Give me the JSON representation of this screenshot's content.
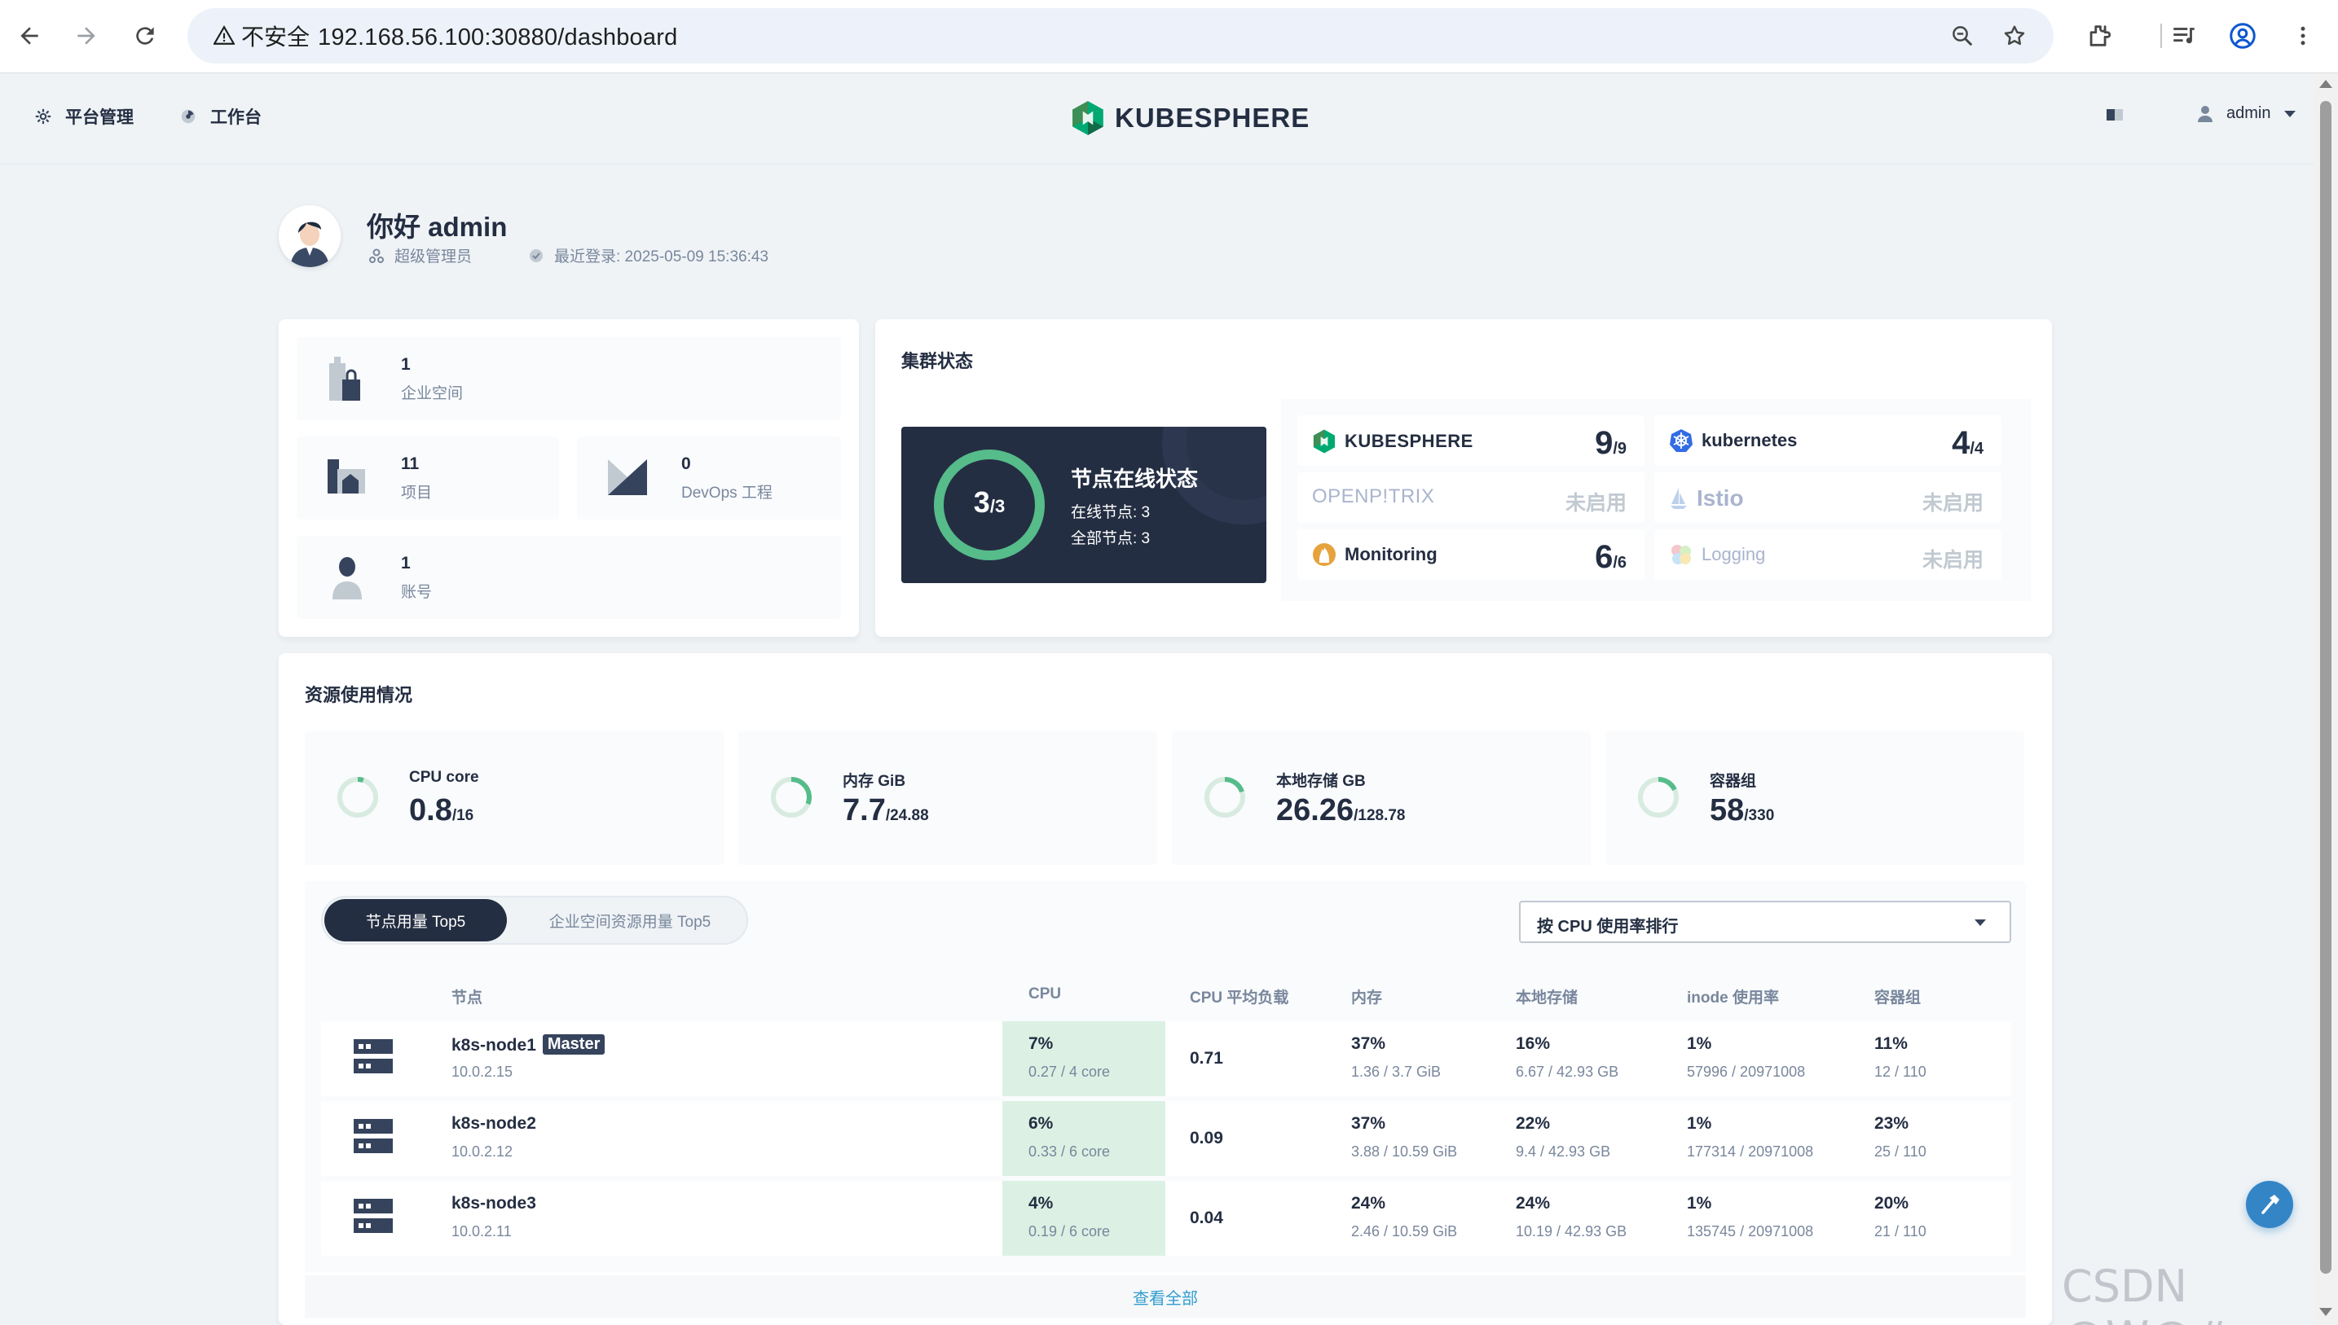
{
  "browser": {
    "security_label": "不安全",
    "url": "192.168.56.100:30880/dashboard"
  },
  "header": {
    "platform_label": "平台管理",
    "workbench_label": "工作台",
    "logo_text": "KUBESPHERE",
    "user_name": "admin"
  },
  "welcome": {
    "greeting": "你好 admin",
    "role": "超级管理员",
    "last_login": "最近登录: 2025-05-09 15:36:43"
  },
  "overview": {
    "workspaces": {
      "value": "1",
      "label": "企业空间"
    },
    "projects": {
      "value": "11",
      "label": "项目"
    },
    "devops": {
      "value": "0",
      "label": "DevOps 工程"
    },
    "accounts": {
      "value": "1",
      "label": "账号"
    }
  },
  "cluster": {
    "title": "集群状态",
    "node_status": {
      "title": "节点在线状态",
      "online_num": "3",
      "total_suffix": "/3",
      "online_line": "在线节点: 3",
      "all_line": "全部节点: 3",
      "online_fraction": 1.0
    },
    "components": [
      {
        "name": "KUBESPHERE",
        "value": "9",
        "total": "/9",
        "enabled": true,
        "icon": "kubesphere-logo-icon"
      },
      {
        "name": "kubernetes",
        "value": "4",
        "total": "/4",
        "enabled": true,
        "icon": "kubernetes-icon"
      },
      {
        "name": "OPENP!TRIX",
        "status": "未启用",
        "enabled": false,
        "icon": "openpitrix-icon"
      },
      {
        "name": "Istio",
        "status": "未启用",
        "enabled": false,
        "icon": "istio-icon"
      },
      {
        "name": "Monitoring",
        "value": "6",
        "total": "/6",
        "enabled": true,
        "icon": "monitoring-icon"
      },
      {
        "name": "Logging",
        "status": "未启用",
        "enabled": false,
        "icon": "logging-icon"
      }
    ]
  },
  "resources": {
    "title": "资源使用情况",
    "items": [
      {
        "label": "CPU core",
        "value": "0.8",
        "total": "/16",
        "fraction": 0.05
      },
      {
        "label": "内存 GiB",
        "value": "7.7",
        "total": "/24.88",
        "fraction": 0.31
      },
      {
        "label": "本地存储 GB",
        "value": "26.26",
        "total": "/128.78",
        "fraction": 0.2
      },
      {
        "label": "容器组",
        "value": "58",
        "total": "/330",
        "fraction": 0.18
      }
    ]
  },
  "top5": {
    "tab_nodes": "节点用量 Top5",
    "tab_workspaces": "企业空间资源用量 Top5",
    "sort_select": "按 CPU 使用率排行",
    "columns": [
      "节点",
      "CPU",
      "CPU 平均负载",
      "内存",
      "本地存储",
      "inode 使用率",
      "容器组"
    ],
    "rows": [
      {
        "name": "k8s-node1",
        "tag": "Master",
        "ip": "10.0.2.15",
        "cpu": "7%",
        "cpu_sub": "0.27 / 4 core",
        "load": "0.71",
        "mem": "37%",
        "mem_sub": "1.36 / 3.7 GiB",
        "disk": "16%",
        "disk_sub": "6.67 / 42.93 GB",
        "inode": "1%",
        "inode_sub": "57996 / 20971008",
        "pods": "11%",
        "pods_sub": "12 / 110"
      },
      {
        "name": "k8s-node2",
        "tag": "",
        "ip": "10.0.2.12",
        "cpu": "6%",
        "cpu_sub": "0.33 / 6 core",
        "load": "0.09",
        "mem": "37%",
        "mem_sub": "3.88 / 10.59 GiB",
        "disk": "22%",
        "disk_sub": "9.4 / 42.93 GB",
        "inode": "1%",
        "inode_sub": "177314 / 20971008",
        "pods": "23%",
        "pods_sub": "25 / 110"
      },
      {
        "name": "k8s-node3",
        "tag": "",
        "ip": "10.0.2.11",
        "cpu": "4%",
        "cpu_sub": "0.19 / 6 core",
        "load": "0.04",
        "mem": "24%",
        "mem_sub": "2.46 / 10.59 GiB",
        "disk": "24%",
        "disk_sub": "10.19 / 42.93 GB",
        "inode": "1%",
        "inode_sub": "135745 / 20971008",
        "pods": "20%",
        "pods_sub": "21 / 110"
      }
    ],
    "view_all": "查看全部"
  },
  "watermark": "CSDN @W@#",
  "colors": {
    "accent_green": "#55bc8a",
    "dark_panel": "#242e42",
    "cpu_highlight": "#dcf1e4",
    "link_blue": "#329dce",
    "disabled_gray": "#c1c9d1"
  }
}
